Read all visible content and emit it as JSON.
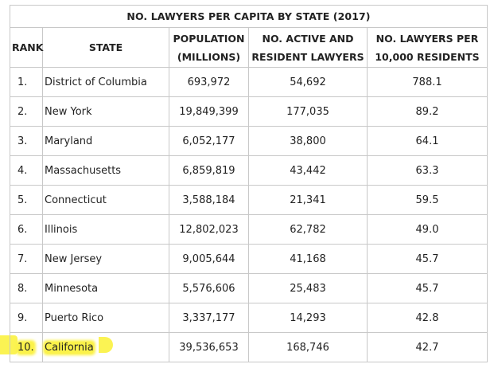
{
  "table": {
    "title": "NO. LAWYERS PER CAPITA BY STATE (2017)",
    "headers": {
      "rank": "RANK",
      "state": "STATE",
      "population_line1": "POPULATION",
      "population_line2": "(MILLIONS)",
      "lawyers_line1": "NO. ACTIVE AND",
      "lawyers_line2": "RESIDENT LAWYERS",
      "per_capita_line1": "NO. LAWYERS PER",
      "per_capita_line2": "10,000 RESIDENTS"
    },
    "rows": [
      {
        "rank": "1.",
        "state": "District of Columbia",
        "population": "693,972",
        "lawyers": "54,692",
        "per_capita": "788.1"
      },
      {
        "rank": "2.",
        "state": "New York",
        "population": "19,849,399",
        "lawyers": "177,035",
        "per_capita": "89.2"
      },
      {
        "rank": "3.",
        "state": "Maryland",
        "population": "6,052,177",
        "lawyers": "38,800",
        "per_capita": "64.1"
      },
      {
        "rank": "4.",
        "state": "Massachusetts",
        "population": "6,859,819",
        "lawyers": "43,442",
        "per_capita": "63.3"
      },
      {
        "rank": "5.",
        "state": "Connecticut",
        "population": "3,588,184",
        "lawyers": "21,341",
        "per_capita": "59.5"
      },
      {
        "rank": "6.",
        "state": "Illinois",
        "population": "12,802,023",
        "lawyers": "62,782",
        "per_capita": "49.0"
      },
      {
        "rank": "7.",
        "state": "New Jersey",
        "population": "9,005,644",
        "lawyers": "41,168",
        "per_capita": "45.7"
      },
      {
        "rank": "8.",
        "state": "Minnesota",
        "population": "5,576,606",
        "lawyers": "25,483",
        "per_capita": "45.7"
      },
      {
        "rank": "9.",
        "state": "Puerto Rico",
        "population": "3,337,177",
        "lawyers": "14,293",
        "per_capita": "42.8"
      },
      {
        "rank": "10.",
        "state": "California",
        "population": "39,536,653",
        "lawyers": "168,746",
        "per_capita": "42.7"
      }
    ],
    "highlight_color": "#fbf24a",
    "border_color": "#c8c8c8"
  }
}
